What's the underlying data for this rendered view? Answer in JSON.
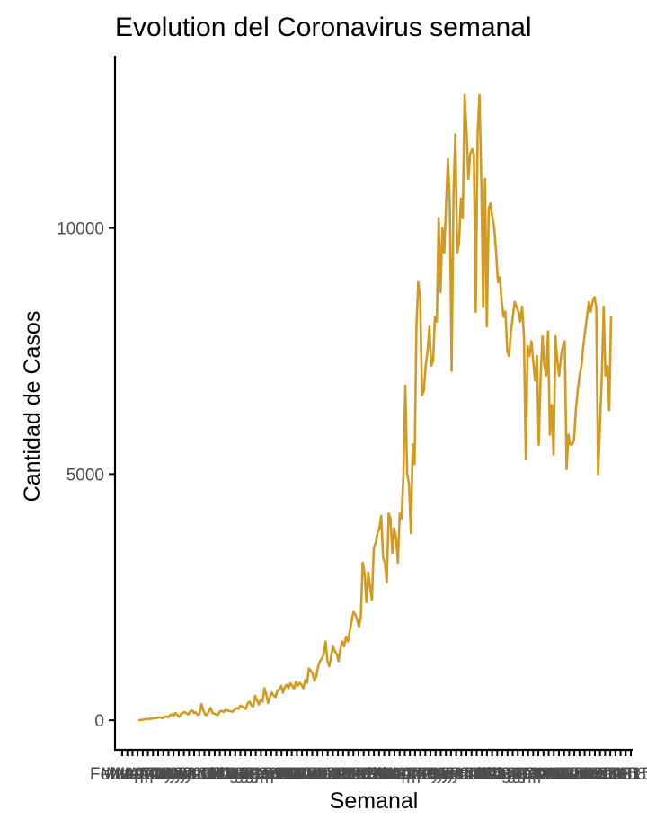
{
  "colors": {
    "series": "#d39a22",
    "axis": "#000000",
    "tick_text": "#4d4d4d"
  },
  "chart_data": {
    "type": "line",
    "title": "Evolution del Coronavirus semanal",
    "xlabel": "Semanal",
    "ylabel": "Cantidad de Casos",
    "grid": false,
    "ylim": [
      -600,
      13500
    ],
    "y_ticks": [
      0,
      5000,
      10000
    ],
    "x_tick_labels": [
      "Feb 29",
      "Mar 07",
      "Mar 14",
      "Mar 21",
      "Mar 28",
      "Apr 04",
      "Apr 11",
      "Apr 18",
      "Apr 25",
      "May 02",
      "May 09",
      "May 16",
      "May 23",
      "May 30",
      "Jun 06",
      "Jun 13",
      "Jun 20",
      "Jun 27",
      "Jul 04",
      "Jul 11",
      "Jul 18",
      "Jul 25",
      "Aug 01",
      "Aug 08",
      "Aug 15",
      "Aug 22",
      "Aug 29",
      "Sep 05",
      "Sep 12",
      "Sep 19",
      "Sep 26",
      "Oct 03",
      "Oct 10",
      "Oct 17",
      "Oct 24",
      "Oct 31",
      "Nov 07",
      "Nov 14",
      "Nov 21",
      "Nov 28",
      "Dec 05",
      "Dec 12",
      "Dec 19",
      "Dec 26",
      "Jan 02",
      "Jan 09",
      "Jan 16",
      "Jan 23",
      "Jan 30",
      "Feb 06",
      "Feb 13",
      "Feb 20",
      "Feb 27",
      "Mar 06",
      "Mar 13",
      "Mar 20",
      "Mar 27",
      "Apr 03",
      "Apr 10",
      "Apr 17",
      "Apr 24",
      "May 01",
      "May 08",
      "May 15",
      "May 22",
      "May 29",
      "Jun 05",
      "Jun 12",
      "Jun 19",
      "Jun 26",
      "Jul 03",
      "Jul 10",
      "Jul 17",
      "Jul 24",
      "Jul 31",
      "Aug 07",
      "Aug 14",
      "Aug 21",
      "Aug 28",
      "Sep 04",
      "Sep 11",
      "Sep 18",
      "Sep 25",
      "Oct 02",
      "Oct 09",
      "Oct 16",
      "Oct 23",
      "Oct 30",
      "Nov 06",
      "Nov 13",
      "Nov 20",
      "Nov 27",
      "Dec 04",
      "Dec 11",
      "Dec 18",
      "Dec 25",
      "Jan 01",
      "Jan 08",
      "Jan 15",
      "Jan 22"
    ],
    "series": [
      {
        "values": [
          0,
          5,
          8,
          15,
          25,
          30,
          20,
          40,
          35,
          50,
          45,
          60,
          55,
          40,
          70,
          80,
          60,
          100,
          120,
          90,
          150,
          110,
          70,
          130,
          150,
          170,
          140,
          120,
          180,
          200,
          150,
          160,
          110,
          130,
          330,
          200,
          120,
          100,
          180,
          250,
          150,
          130,
          120,
          110,
          180,
          190,
          170,
          210,
          200,
          190,
          180,
          175,
          220,
          250,
          230,
          300,
          280,
          260,
          230,
          350,
          380,
          300,
          280,
          500,
          400,
          320,
          420,
          380,
          650,
          520,
          350,
          480,
          560,
          500,
          470,
          600,
          620,
          700,
          560,
          680,
          720,
          650,
          750,
          700,
          640,
          780,
          700,
          760,
          720,
          650,
          820,
          760,
          1050,
          1000,
          950,
          800,
          900,
          1100,
          1200,
          1250,
          1350,
          1600,
          1200,
          1100,
          1300,
          1500,
          1400,
          1350,
          1200,
          1450,
          1600,
          1500,
          1700,
          1600,
          1800,
          2000,
          2200,
          2150,
          2050,
          1900,
          2100,
          3200,
          3000,
          2400,
          3000,
          2700,
          2450,
          3500,
          3600,
          3800,
          3900,
          4150,
          3300,
          3200,
          2800,
          4200,
          4100,
          3400,
          3900,
          3700,
          3200,
          4200,
          4100,
          5000,
          6800,
          5000,
          4800,
          3800,
          5600,
          5200,
          8000,
          8900,
          8600,
          6600,
          6700,
          7200,
          7500,
          8000,
          7200,
          7300,
          8200,
          8100,
          10200,
          8700,
          10000,
          9500,
          10500,
          11400,
          10500,
          7100,
          10700,
          11900,
          9500,
          9700,
          10600,
          10200,
          12700,
          12000,
          11000,
          11500,
          11600,
          11500,
          8300,
          11900,
          12700,
          11000,
          8400,
          11000,
          8000,
          10400,
          10500,
          10200,
          10000,
          9500,
          8900,
          9000,
          8500,
          8200,
          8300,
          7500,
          7400,
          7900,
          8200,
          8500,
          8400,
          8300,
          8100,
          8400,
          7800,
          5300,
          7600,
          7400,
          7700,
          7300,
          6900,
          7400,
          5600,
          7000,
          7800,
          7200,
          7000,
          7900,
          5800,
          6400,
          5400,
          7800,
          7300,
          7000,
          7400,
          7600,
          7700,
          5100,
          5800,
          5600,
          5600,
          5700,
          6300,
          6700,
          7000,
          7200,
          7600,
          7900,
          8200,
          8500,
          8300,
          8500,
          8600,
          8400,
          5000,
          6000,
          7000,
          8400,
          7000,
          7200,
          6300,
          8200
        ]
      }
    ]
  }
}
